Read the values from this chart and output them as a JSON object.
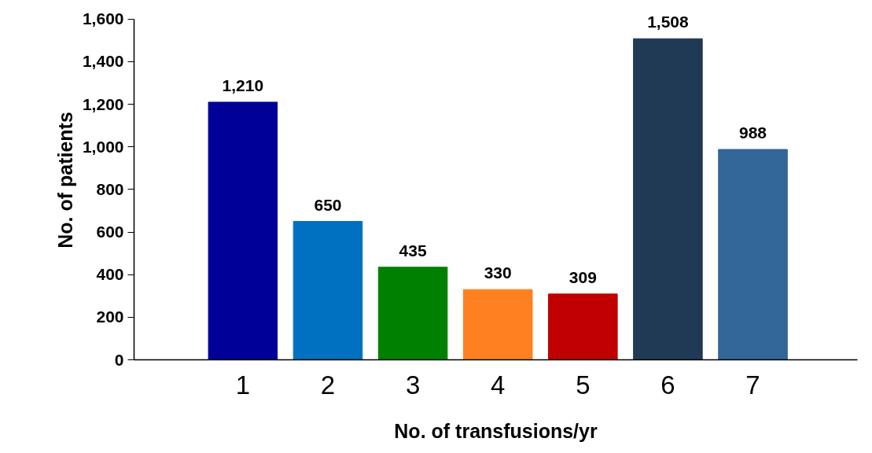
{
  "chart_data": {
    "type": "bar",
    "xlabel": "No. of transfusions/yr",
    "ylabel": "No. of patients",
    "categories": [
      "1",
      "2",
      "3",
      "4",
      "5",
      "6",
      "7"
    ],
    "values": [
      1210,
      650,
      435,
      330,
      309,
      1508,
      988
    ],
    "colors": [
      "#000099",
      "#0070c0",
      "#008000",
      "#ff8020",
      "#c00000",
      "#203a55",
      "#336699"
    ],
    "ylim": [
      0,
      1600
    ],
    "yticks": [
      {
        "value": 0,
        "label": "0"
      },
      {
        "value": 200,
        "label": "200"
      },
      {
        "value": 400,
        "label": "400"
      },
      {
        "value": 600,
        "label": "600"
      },
      {
        "value": 800,
        "label": "800"
      },
      {
        "value": 1000,
        "label": "1,000"
      },
      {
        "value": 1200,
        "label": "1,200"
      },
      {
        "value": 1400,
        "label": "1,400"
      },
      {
        "value": 1600,
        "label": "1,600"
      }
    ],
    "value_labels": [
      "1,210",
      "650",
      "435",
      "330",
      "309",
      "1,508",
      "988"
    ],
    "grid": false
  }
}
